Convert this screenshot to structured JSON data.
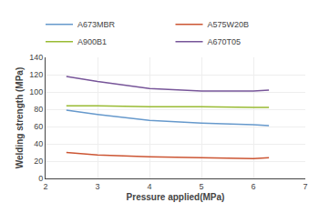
{
  "chart_data": {
    "type": "line",
    "xlabel": "Pressure applied(MPa)",
    "ylabel": "Welding strength (MPa)",
    "x": [
      2.4,
      3.0,
      4.0,
      5.0,
      6.0,
      6.3
    ],
    "series": [
      {
        "name": "A673MBR",
        "color": "#6699CC",
        "values": [
          79,
          74,
          67,
          64,
          62,
          61
        ]
      },
      {
        "name": "A575W20B",
        "color": "#CC5533",
        "values": [
          30,
          27,
          25,
          24,
          23,
          24
        ]
      },
      {
        "name": "A900B1",
        "color": "#99BB33",
        "values": [
          84,
          84,
          83,
          83,
          82,
          82
        ]
      },
      {
        "name": "A670T05",
        "color": "#775599",
        "values": [
          118,
          112,
          104,
          101,
          101,
          102
        ]
      }
    ],
    "xlim": [
      2,
      7
    ],
    "ylim": [
      0,
      140
    ],
    "xticks": [
      2,
      3,
      4,
      5,
      6,
      7
    ],
    "yticks": [
      0,
      20,
      40,
      60,
      80,
      100,
      120,
      140
    ],
    "grid": true,
    "legend": "upper right"
  }
}
